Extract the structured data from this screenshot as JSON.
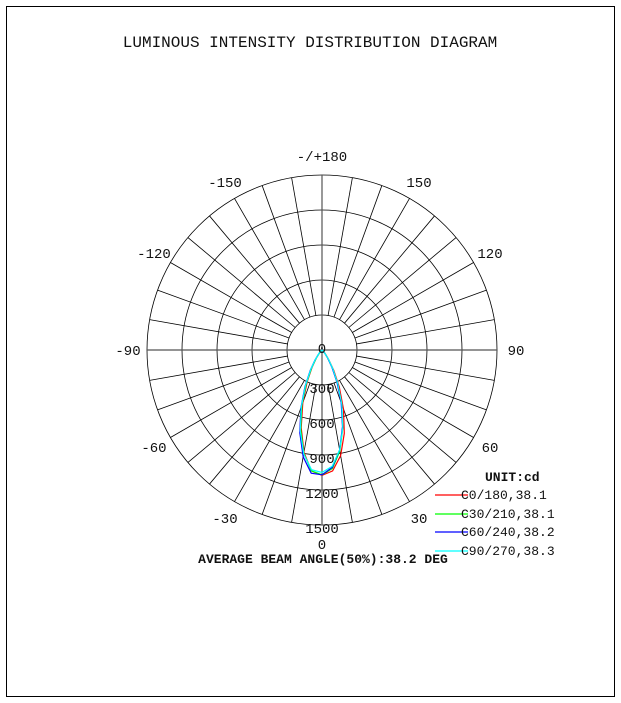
{
  "chart_data": {
    "type": "polar-line",
    "title": "LUMINOUS INTENSITY DISTRIBUTION DIAGRAM",
    "unit_label": "UNIT:cd",
    "footer": "AVERAGE BEAM ANGLE(50%):38.2 DEG",
    "radial_range": [
      0,
      1500
    ],
    "radial_ticks": [
      0,
      300,
      600,
      900,
      1200,
      1500
    ],
    "radial_tick_labels": [
      "0",
      "300",
      "600",
      "900",
      "1200",
      "1500"
    ],
    "angle_tick_labels": [
      {
        "angle": 180,
        "label": "-/+180"
      },
      {
        "angle": 150,
        "label": "150"
      },
      {
        "angle": 120,
        "label": "120"
      },
      {
        "angle": 90,
        "label": "90"
      },
      {
        "angle": 60,
        "label": "60"
      },
      {
        "angle": 30,
        "label": "30"
      },
      {
        "angle": 0,
        "label": "0"
      },
      {
        "angle": -30,
        "label": "-30"
      },
      {
        "angle": -60,
        "label": "-60"
      },
      {
        "angle": -90,
        "label": "-90"
      },
      {
        "angle": -120,
        "label": "-120"
      },
      {
        "angle": -150,
        "label": "-150"
      }
    ],
    "grid": true,
    "spoke_step_deg": 10,
    "legend_position": "bottom-right",
    "angles": [
      -50,
      -45,
      -40,
      -35,
      -30,
      -25,
      -20,
      -15,
      -10,
      -5,
      0,
      5,
      10,
      15,
      20,
      25,
      30,
      35,
      40,
      45,
      50
    ],
    "series": [
      {
        "name": "C0/180,38.1",
        "color": "#ff0000",
        "values": [
          5,
          12,
          35,
          85,
          170,
          300,
          480,
          690,
          890,
          1040,
          1075,
          1040,
          920,
          740,
          540,
          350,
          200,
          100,
          45,
          15,
          5
        ]
      },
      {
        "name": "C30/210,38.1",
        "color": "#00ff00",
        "values": [
          5,
          15,
          40,
          90,
          180,
          320,
          505,
          705,
          900,
          1040,
          1070,
          1020,
          880,
          690,
          490,
          315,
          180,
          90,
          40,
          15,
          5
        ]
      },
      {
        "name": "C60/240,38.2",
        "color": "#0000ff",
        "values": [
          6,
          18,
          48,
          105,
          200,
          345,
          530,
          735,
          930,
          1060,
          1070,
          1010,
          870,
          680,
          480,
          305,
          170,
          85,
          36,
          12,
          4
        ]
      },
      {
        "name": "C90/270,38.3",
        "color": "#00ffff",
        "values": [
          5,
          16,
          44,
          98,
          192,
          335,
          520,
          720,
          905,
          1030,
          1050,
          1000,
          870,
          690,
          495,
          320,
          185,
          95,
          42,
          16,
          5
        ]
      }
    ]
  }
}
